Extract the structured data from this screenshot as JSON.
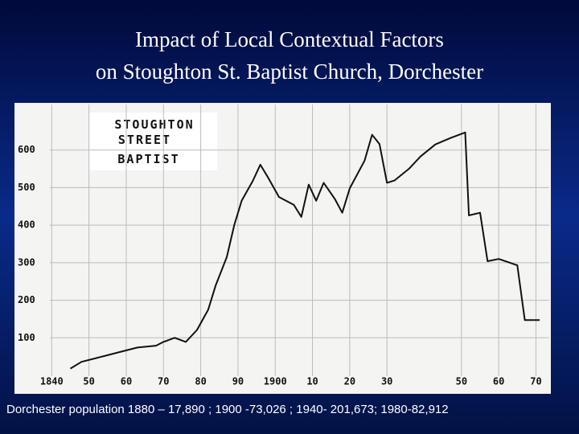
{
  "slide": {
    "title_lines": [
      "Impact of Local Contextual Factors",
      "on Stoughton St. Baptist Church, Dorchester"
    ],
    "footer": "Dorchester population 1880 – 17,890 ; 1900 -73,026 ; 1940- 201,673; 1980-82,912"
  },
  "chart_data": {
    "type": "line",
    "title_lines": [
      "STOUGHTON",
      "STREET",
      "BAPTIST"
    ],
    "x": [
      1845,
      1848,
      1852,
      1859,
      1863,
      1868,
      1870,
      1873,
      1876,
      1879,
      1882,
      1884,
      1887,
      1889,
      1891,
      1894,
      1896,
      1898,
      1901,
      1905,
      1907,
      1909,
      1911,
      1913,
      1916,
      1918,
      1920,
      1924,
      1926,
      1928,
      1930,
      1932,
      1936,
      1939,
      1943,
      1947,
      1951,
      1952,
      1955,
      1957,
      1960,
      1965,
      1967,
      1971
    ],
    "series": [
      {
        "name": "Stoughton Street Baptist",
        "color": "#111111",
        "values": [
          18,
          36,
          46,
          64,
          74,
          79,
          89,
          100,
          89,
          121,
          175,
          239,
          315,
          400,
          465,
          518,
          561,
          528,
          475,
          454,
          422,
          508,
          465,
          513,
          470,
          433,
          498,
          572,
          641,
          616,
          513,
          519,
          551,
          583,
          615,
          632,
          647,
          426,
          433,
          304,
          310,
          293,
          147,
          147
        ]
      }
    ],
    "xlim": [
      1830,
      1974
    ],
    "xticks": [
      {
        "value": 1840,
        "label": "1840"
      },
      {
        "value": 1850,
        "label": "50"
      },
      {
        "value": 1860,
        "label": "60"
      },
      {
        "value": 1870,
        "label": "70"
      },
      {
        "value": 1880,
        "label": "80"
      },
      {
        "value": 1890,
        "label": "90"
      },
      {
        "value": 1900,
        "label": "1900"
      },
      {
        "value": 1910,
        "label": "10"
      },
      {
        "value": 1920,
        "label": "20"
      },
      {
        "value": 1930,
        "label": "30"
      },
      {
        "value": 1950,
        "label": "50"
      },
      {
        "value": 1960,
        "label": "60"
      },
      {
        "value": 1970,
        "label": "70"
      }
    ],
    "ylim": [
      0,
      700
    ],
    "yticks": [
      100,
      200,
      300,
      400,
      500,
      600
    ],
    "grid": true
  }
}
